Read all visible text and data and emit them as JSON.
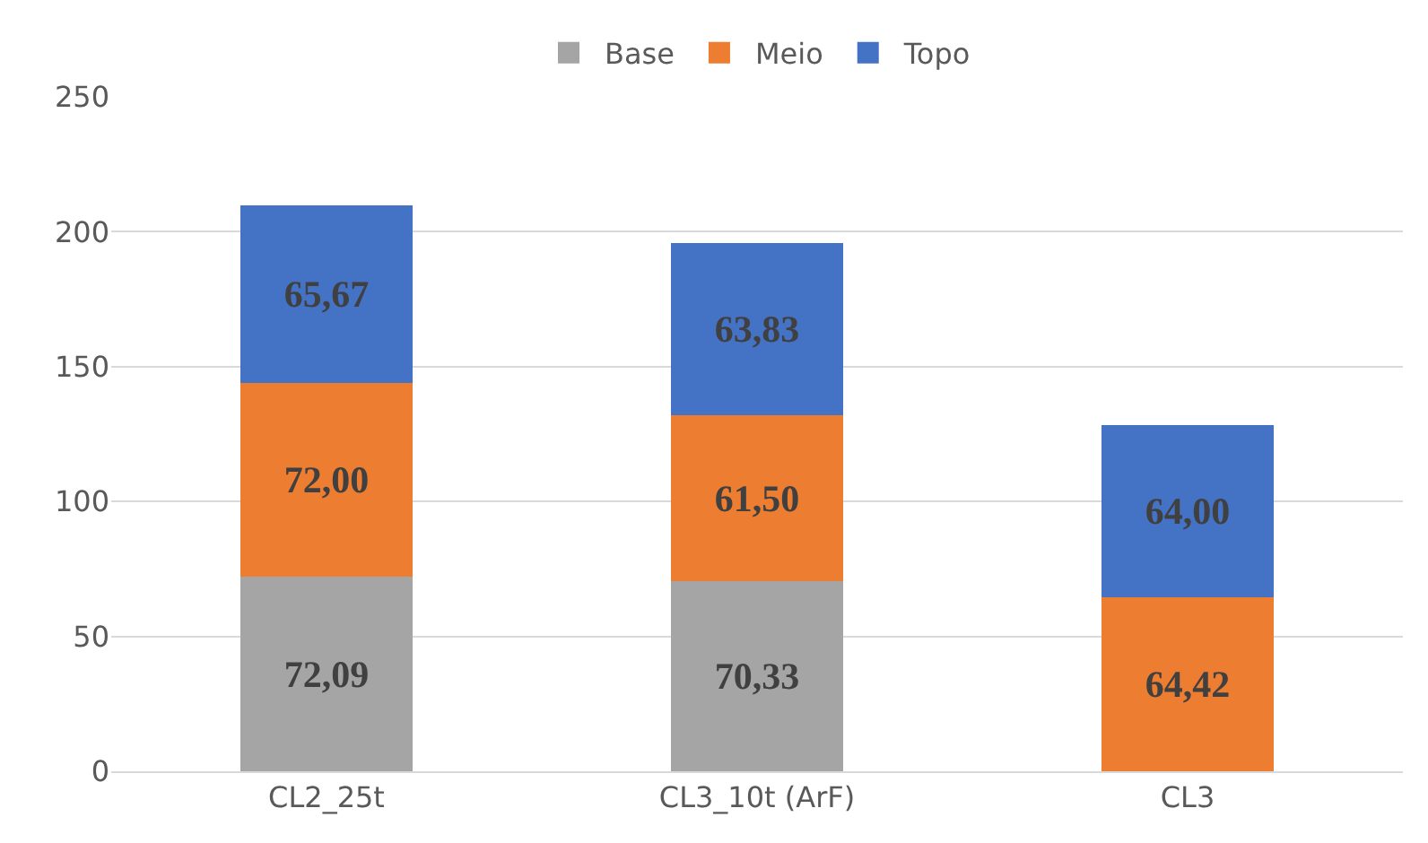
{
  "chart_data": {
    "type": "bar",
    "stacked": true,
    "categories": [
      "CL2_25t",
      "CL3_10t (ArF)",
      "CL3"
    ],
    "series": [
      {
        "name": "Base",
        "color": "#a5a5a5",
        "values": [
          72.09,
          70.33,
          null
        ],
        "value_labels": [
          "72,09",
          "70,33",
          null
        ]
      },
      {
        "name": "Meio",
        "color": "#ed7d31",
        "values": [
          72.0,
          61.5,
          64.42
        ],
        "value_labels": [
          "72,00",
          "61,50",
          "64,42"
        ]
      },
      {
        "name": "Topo",
        "color": "#4472c4",
        "values": [
          65.67,
          63.83,
          64.0
        ],
        "value_labels": [
          "65,67",
          "63,83",
          "64,00"
        ]
      }
    ],
    "ylim": [
      0,
      250
    ],
    "yticks": [
      0,
      50,
      100,
      150,
      200,
      250
    ],
    "grid": "y",
    "legend": "top"
  }
}
